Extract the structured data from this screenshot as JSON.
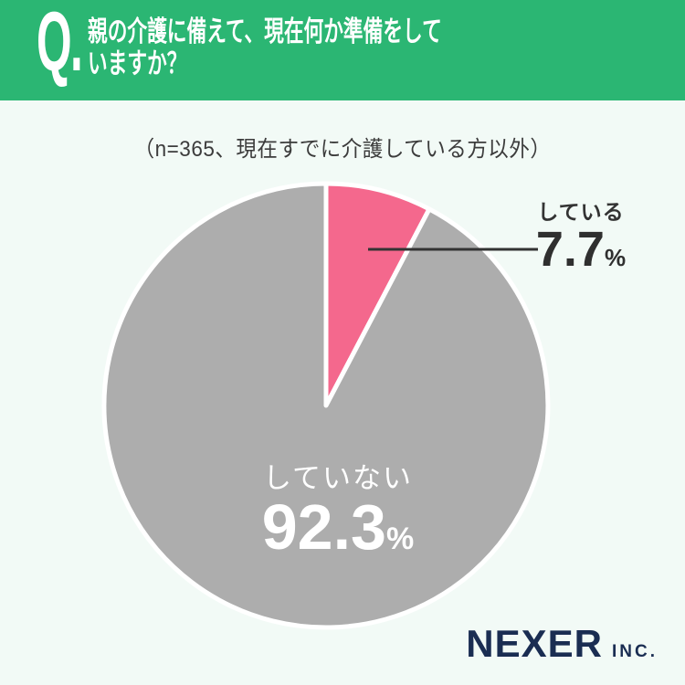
{
  "header": {
    "q_label": "Q.",
    "title_line1": "親の介護に備えて、現在何か準備をして",
    "title_line2": "いますか？"
  },
  "subtitle": "（n=365、現在すでに介護している方以外）",
  "chart_data": {
    "type": "pie",
    "title": "親の介護に備えて、現在何か準備をしていますか？",
    "note": "（n=365、現在すでに介護している方以外）",
    "n": 365,
    "start_angle_deg": 0,
    "direction": "clockwise",
    "slices": [
      {
        "label": "している",
        "value": 7.7,
        "unit": "%",
        "color": "#F4688D"
      },
      {
        "label": "していない",
        "value": 92.3,
        "unit": "%",
        "color": "#ADADAD"
      }
    ]
  },
  "logo": {
    "name": "NEXER",
    "suffix": "INC."
  },
  "colors": {
    "banner_green": "#2BB673",
    "background_mint": "#F2FAF6",
    "slice_pink": "#F4688D",
    "slice_gray": "#ADADAD",
    "label_dark": "#333333",
    "logo_navy": "#1A2D52",
    "leader_line": "#333333"
  }
}
